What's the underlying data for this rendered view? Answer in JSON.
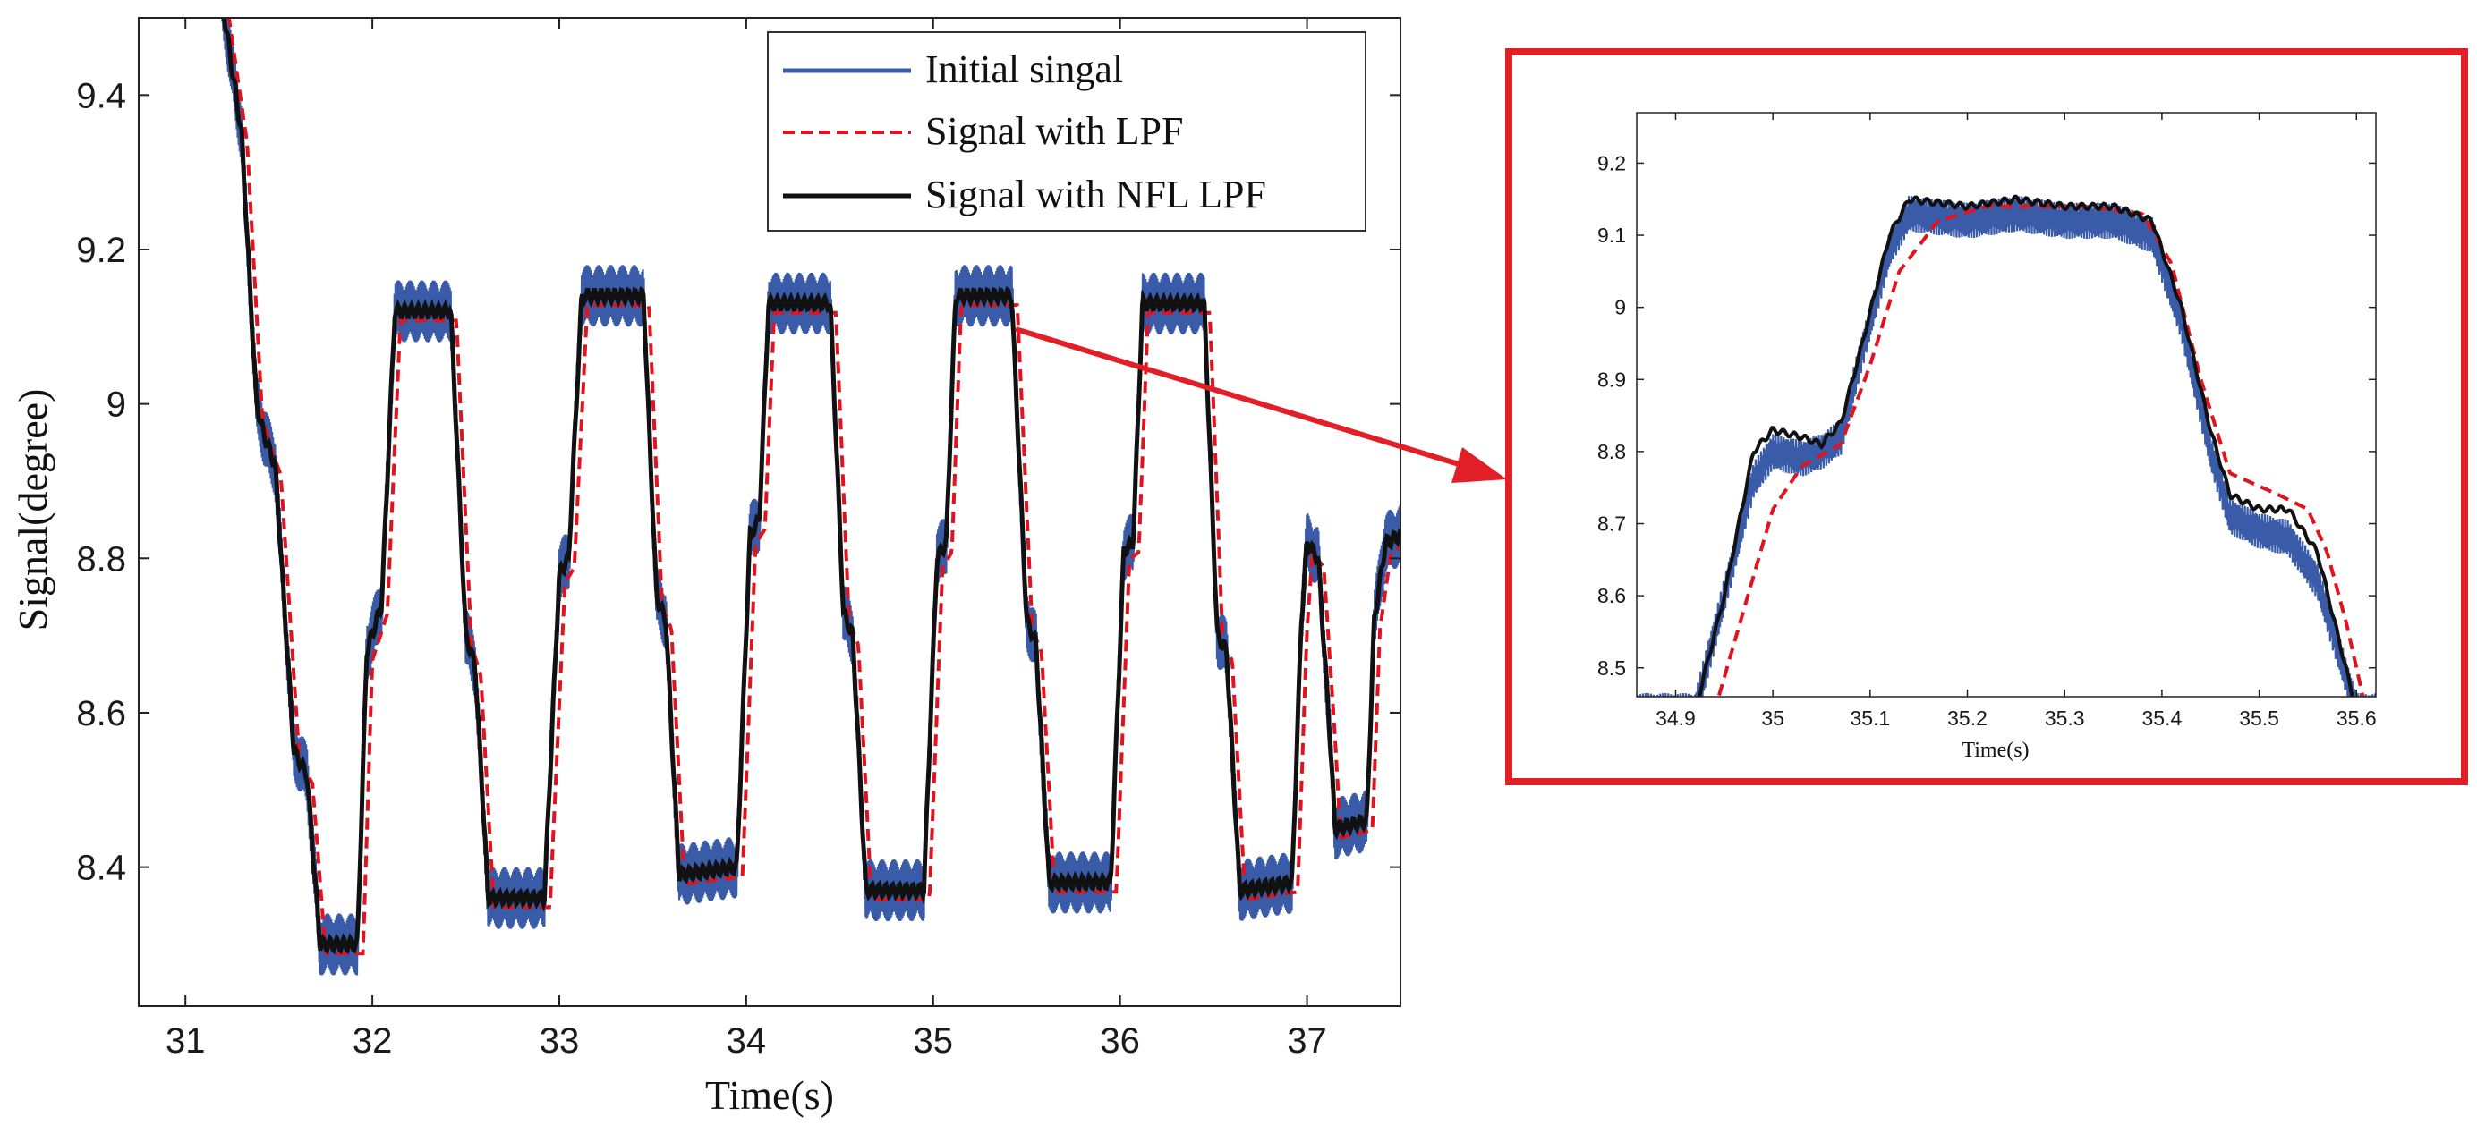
{
  "colors": {
    "initial": "#3a5ba8",
    "lpf": "#e0141e",
    "nfl": "#111111",
    "zoom_box": "#e21f26",
    "arrow": "#e21f26"
  },
  "chart_data": [
    {
      "type": "line",
      "id": "main",
      "title": "",
      "xlabel": "Time(s)",
      "ylabel": "Signal(degree)",
      "xlim": [
        30.75,
        37.5
      ],
      "ylim": [
        8.22,
        9.5
      ],
      "xticks": [
        31,
        32,
        33,
        34,
        35,
        36,
        37
      ],
      "yticks": [
        8.4,
        8.6,
        8.8,
        9.0,
        9.2,
        9.4
      ],
      "ytick_labels": [
        "8.4",
        "8.6",
        "8.8",
        "9",
        "9.2",
        "9.4"
      ],
      "grid": false,
      "legend_position": "top-right",
      "series": [
        {
          "name": "Initial singal",
          "style": "solid",
          "noise_amplitude": 0.04
        },
        {
          "name": "Signal with LPF",
          "style": "dashed",
          "lag": 0.03
        },
        {
          "name": "Signal with NFL LPF",
          "style": "solid"
        }
      ],
      "keypoints": [
        [
          31.18,
          9.55
        ],
        [
          31.3,
          9.35
        ],
        [
          31.38,
          9.0
        ],
        [
          31.42,
          8.96
        ],
        [
          31.48,
          8.92
        ],
        [
          31.58,
          8.55
        ],
        [
          31.65,
          8.52
        ],
        [
          31.72,
          8.3
        ],
        [
          31.92,
          8.3
        ],
        [
          31.97,
          8.68
        ],
        [
          32.05,
          8.74
        ],
        [
          32.12,
          9.12
        ],
        [
          32.42,
          9.12
        ],
        [
          32.5,
          8.7
        ],
        [
          32.55,
          8.66
        ],
        [
          32.62,
          8.36
        ],
        [
          32.92,
          8.36
        ],
        [
          33.0,
          8.78
        ],
        [
          33.05,
          8.8
        ],
        [
          33.12,
          9.14
        ],
        [
          33.45,
          9.14
        ],
        [
          33.52,
          8.75
        ],
        [
          33.57,
          8.72
        ],
        [
          33.64,
          8.39
        ],
        [
          33.95,
          8.4
        ],
        [
          34.02,
          8.83
        ],
        [
          34.07,
          8.85
        ],
        [
          34.12,
          9.13
        ],
        [
          34.45,
          9.13
        ],
        [
          34.52,
          8.73
        ],
        [
          34.57,
          8.7
        ],
        [
          34.64,
          8.37
        ],
        [
          34.95,
          8.37
        ],
        [
          35.02,
          8.8
        ],
        [
          35.07,
          8.82
        ],
        [
          35.12,
          9.14
        ],
        [
          35.42,
          9.14
        ],
        [
          35.5,
          8.72
        ],
        [
          35.55,
          8.69
        ],
        [
          35.62,
          8.38
        ],
        [
          35.95,
          8.38
        ],
        [
          36.02,
          8.81
        ],
        [
          36.07,
          8.82
        ],
        [
          36.12,
          9.13
        ],
        [
          36.45,
          9.13
        ],
        [
          36.52,
          8.7
        ],
        [
          36.57,
          8.68
        ],
        [
          36.64,
          8.37
        ],
        [
          36.92,
          8.38
        ],
        [
          36.97,
          8.72
        ],
        [
          37.0,
          8.82
        ],
        [
          37.06,
          8.8
        ],
        [
          37.12,
          8.58
        ],
        [
          37.15,
          8.45
        ],
        [
          37.32,
          8.46
        ],
        [
          37.36,
          8.72
        ],
        [
          37.42,
          8.82
        ],
        [
          37.5,
          8.83
        ]
      ]
    },
    {
      "type": "line",
      "id": "zoom",
      "title": "",
      "xlabel": "Time(s)",
      "ylabel": "",
      "xlim": [
        34.86,
        35.62
      ],
      "ylim": [
        8.46,
        9.27
      ],
      "xticks": [
        34.9,
        35.0,
        35.1,
        35.2,
        35.3,
        35.4,
        35.5,
        35.6
      ],
      "xtick_labels": [
        "34.9",
        "35",
        "35.1",
        "35.2",
        "35.3",
        "35.4",
        "35.5",
        "35.6"
      ],
      "yticks": [
        8.5,
        8.6,
        8.7,
        8.8,
        8.9,
        9.0,
        9.1,
        9.2
      ],
      "ytick_labels": [
        "8.5",
        "8.6",
        "8.7",
        "8.8",
        "8.9",
        "9",
        "9.1",
        "9.2"
      ],
      "grid": false,
      "series": [
        {
          "name": "Initial singal",
          "style": "solid",
          "noise_amplitude": 0.025
        },
        {
          "name": "Signal with LPF",
          "style": "dashed",
          "points": [
            [
              34.94,
              8.44
            ],
            [
              34.97,
              8.58
            ],
            [
              35.0,
              8.72
            ],
            [
              35.03,
              8.78
            ],
            [
              35.07,
              8.81
            ],
            [
              35.1,
              8.92
            ],
            [
              35.13,
              9.05
            ],
            [
              35.17,
              9.12
            ],
            [
              35.22,
              9.14
            ],
            [
              35.32,
              9.14
            ],
            [
              35.38,
              9.13
            ],
            [
              35.41,
              9.06
            ],
            [
              35.44,
              8.9
            ],
            [
              35.47,
              8.77
            ],
            [
              35.52,
              8.74
            ],
            [
              35.55,
              8.72
            ],
            [
              35.57,
              8.66
            ],
            [
              35.59,
              8.56
            ],
            [
              35.61,
              8.44
            ]
          ]
        },
        {
          "name": "Signal with NFL LPF",
          "style": "solid",
          "points": [
            [
              34.92,
              8.44
            ],
            [
              34.95,
              8.6
            ],
            [
              34.98,
              8.8
            ],
            [
              35.0,
              8.83
            ],
            [
              35.03,
              8.82
            ],
            [
              35.05,
              8.81
            ],
            [
              35.07,
              8.84
            ],
            [
              35.09,
              8.94
            ],
            [
              35.12,
              9.1
            ],
            [
              35.14,
              9.15
            ],
            [
              35.2,
              9.14
            ],
            [
              35.25,
              9.15
            ],
            [
              35.3,
              9.14
            ],
            [
              35.35,
              9.14
            ],
            [
              35.39,
              9.12
            ],
            [
              35.42,
              9.0
            ],
            [
              35.45,
              8.83
            ],
            [
              35.47,
              8.74
            ],
            [
              35.5,
              8.72
            ],
            [
              35.53,
              8.72
            ],
            [
              35.56,
              8.66
            ],
            [
              35.58,
              8.55
            ],
            [
              35.6,
              8.44
            ]
          ]
        }
      ],
      "initial_points": [
        [
          34.92,
          8.44
        ],
        [
          34.95,
          8.6
        ],
        [
          34.98,
          8.76
        ],
        [
          35.0,
          8.8
        ],
        [
          35.03,
          8.79
        ],
        [
          35.05,
          8.8
        ],
        [
          35.07,
          8.82
        ],
        [
          35.09,
          8.93
        ],
        [
          35.12,
          9.08
        ],
        [
          35.14,
          9.13
        ],
        [
          35.2,
          9.12
        ],
        [
          35.25,
          9.13
        ],
        [
          35.3,
          9.12
        ],
        [
          35.35,
          9.12
        ],
        [
          35.39,
          9.1
        ],
        [
          35.42,
          8.98
        ],
        [
          35.45,
          8.8
        ],
        [
          35.47,
          8.71
        ],
        [
          35.5,
          8.69
        ],
        [
          35.53,
          8.68
        ],
        [
          35.56,
          8.62
        ],
        [
          35.58,
          8.53
        ],
        [
          35.6,
          8.44
        ]
      ]
    }
  ]
}
